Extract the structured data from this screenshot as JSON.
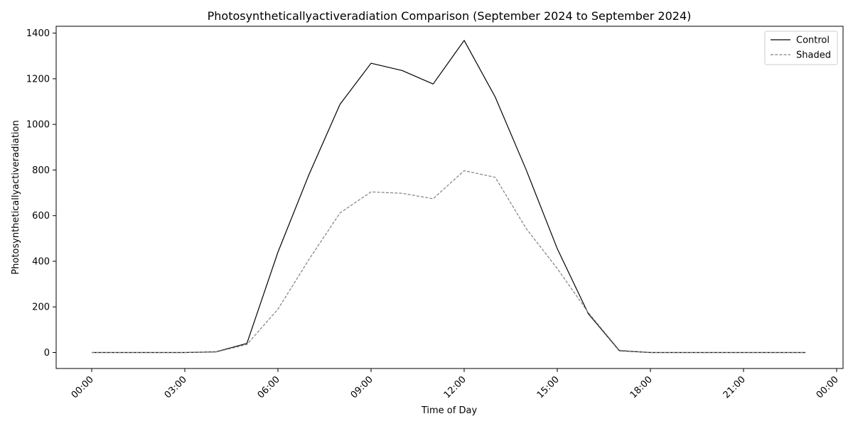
{
  "chart_data": {
    "type": "line",
    "title": "Photosyntheticallyactiveradiation Comparison (September 2024 to September 2024)",
    "xlabel": "Time of Day",
    "ylabel": "Photosyntheticallyactiveradiation",
    "x": [
      "00:00",
      "01:00",
      "02:00",
      "03:00",
      "04:00",
      "05:00",
      "06:00",
      "07:00",
      "08:00",
      "09:00",
      "10:00",
      "11:00",
      "12:00",
      "13:00",
      "14:00",
      "15:00",
      "16:00",
      "17:00",
      "18:00",
      "19:00",
      "20:00",
      "21:00",
      "22:00",
      "23:00"
    ],
    "x_ticks": [
      "00:00",
      "03:00",
      "06:00",
      "09:00",
      "12:00",
      "15:00",
      "18:00",
      "21:00",
      "00:00"
    ],
    "xlim": [
      "00:00",
      "24:00"
    ],
    "y_ticks": [
      0,
      200,
      400,
      600,
      800,
      1000,
      1200,
      1400
    ],
    "ylim": [
      -70,
      1430
    ],
    "grid": false,
    "legend_position": "top-right",
    "series": [
      {
        "name": "Control",
        "color": "#000000",
        "line_style": "solid",
        "values": [
          0,
          0,
          0,
          0,
          3,
          40,
          440,
          780,
          1088,
          1268,
          1236,
          1177,
          1368,
          1120,
          800,
          455,
          170,
          8,
          0,
          0,
          0,
          0,
          0,
          0
        ]
      },
      {
        "name": "Shaded",
        "color": "#808080",
        "line_style": "dashed",
        "values": [
          0,
          0,
          0,
          0,
          2,
          35,
          190,
          408,
          612,
          704,
          698,
          674,
          797,
          768,
          543,
          368,
          175,
          10,
          0,
          0,
          0,
          0,
          0,
          0
        ]
      }
    ]
  }
}
